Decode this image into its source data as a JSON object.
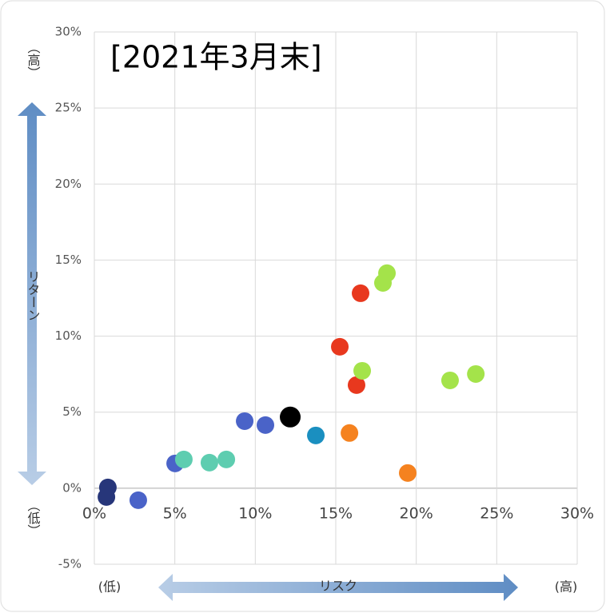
{
  "chart_data": {
    "type": "scatter",
    "title": "[2021年3月末]",
    "y_label": "リターン",
    "y_label_high": "（高）",
    "y_label_low": "（低）",
    "x_label": "リスク",
    "x_label_low": "(低)",
    "x_label_high": "(高)",
    "xlim": [
      0,
      30
    ],
    "ylim": [
      -5,
      30
    ],
    "grid": true,
    "xticks": [
      {
        "value": 0,
        "label": "0%"
      },
      {
        "value": 5,
        "label": "5%"
      },
      {
        "value": 10,
        "label": "10%"
      },
      {
        "value": 15,
        "label": "15%"
      },
      {
        "value": 20,
        "label": "20%"
      },
      {
        "value": 25,
        "label": "25%"
      },
      {
        "value": 30,
        "label": "30%"
      }
    ],
    "yticks": [
      {
        "value": -5,
        "label": "-5%"
      },
      {
        "value": 0,
        "label": "0%"
      },
      {
        "value": 5,
        "label": "5%"
      },
      {
        "value": 10,
        "label": "10%"
      },
      {
        "value": 15,
        "label": "15%"
      },
      {
        "value": 20,
        "label": "20%"
      },
      {
        "value": 25,
        "label": "25%"
      },
      {
        "value": 30,
        "label": "30%"
      }
    ],
    "series": [
      {
        "color": "#27367a",
        "x": [
          0.84,
          0.75
        ],
        "values": [
          0.05,
          -0.58
        ]
      },
      {
        "color": "#4a63c8",
        "x": [
          2.73,
          5.02,
          9.34,
          10.63
        ],
        "values": [
          -0.79,
          1.63,
          4.41,
          4.15
        ]
      },
      {
        "color": "#5ecdb0",
        "x": [
          5.56,
          7.15,
          8.2
        ],
        "values": [
          1.89,
          1.68,
          1.89
        ]
      },
      {
        "color": "#000000",
        "x": [
          12.17
        ],
        "values": [
          4.68
        ]
      },
      {
        "color": "#1a8fc0",
        "x": [
          13.76
        ],
        "values": [
          3.47
        ]
      },
      {
        "color": "#f5821f",
        "x": [
          15.85,
          19.47
        ],
        "values": [
          3.63,
          1.0
        ]
      },
      {
        "color": "#e8381e",
        "x": [
          16.54,
          15.25,
          16.29
        ],
        "values": [
          12.82,
          9.3,
          6.78
        ]
      },
      {
        "color": "#a4e34a",
        "x": [
          18.18,
          17.93,
          16.64,
          22.1,
          23.7
        ],
        "values": [
          14.14,
          13.5,
          7.72,
          7.09,
          7.51
        ]
      }
    ]
  }
}
